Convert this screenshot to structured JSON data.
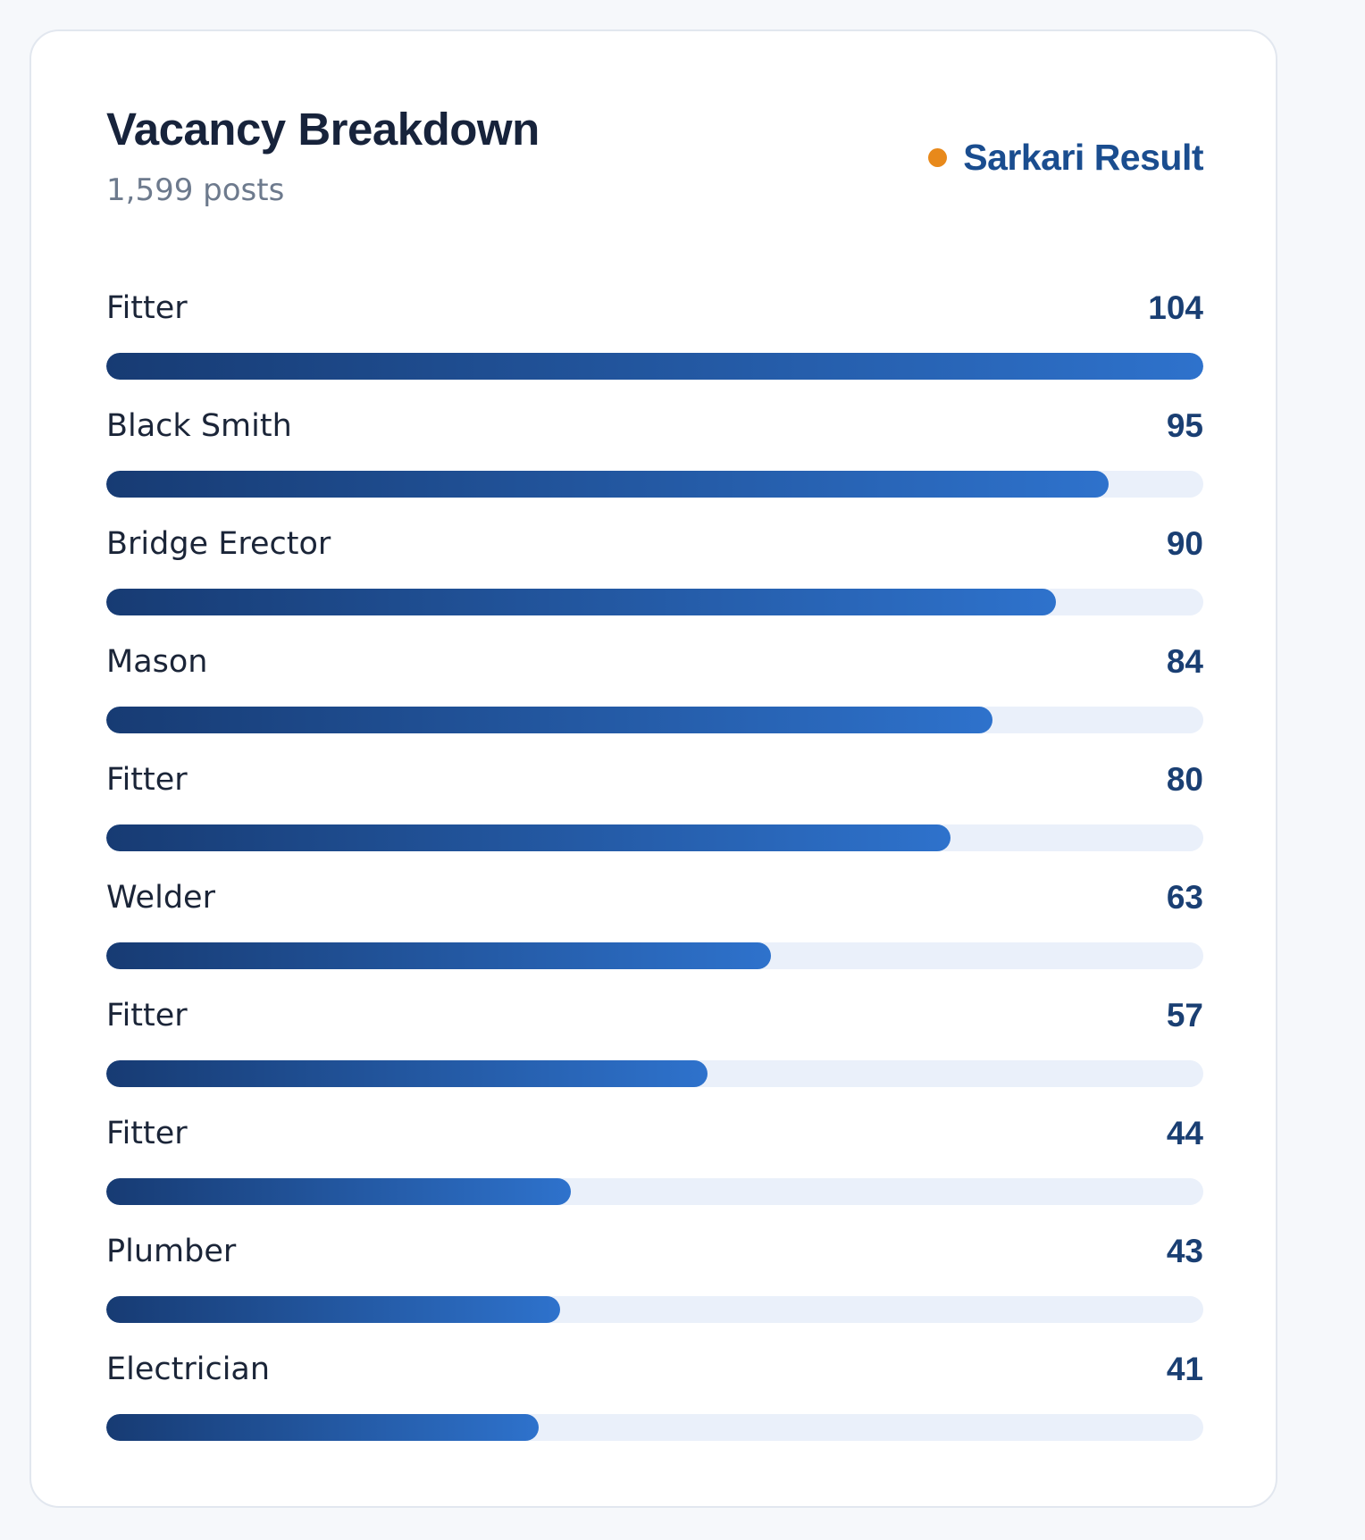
{
  "header": {
    "title": "Vacancy Breakdown",
    "subtitle": "1,599 posts",
    "brand": "Sarkari Result",
    "brand_dot_color": "#e8891b"
  },
  "colors": {
    "bar_start": "#173b73",
    "bar_end": "#2e72cc",
    "track": "#eaf0fa",
    "value_text": "#1a3f73"
  },
  "chart_data": {
    "type": "bar",
    "orientation": "horizontal",
    "title": "Vacancy Breakdown",
    "subtitle": "1,599 posts",
    "categories": [
      "Fitter",
      "Black Smith",
      "Bridge Erector",
      "Mason",
      "Fitter",
      "Welder",
      "Fitter",
      "Fitter",
      "Plumber",
      "Electrician"
    ],
    "values": [
      104,
      95,
      90,
      84,
      80,
      63,
      57,
      44,
      43,
      41
    ],
    "xlim": [
      0,
      104
    ],
    "grid": false
  }
}
